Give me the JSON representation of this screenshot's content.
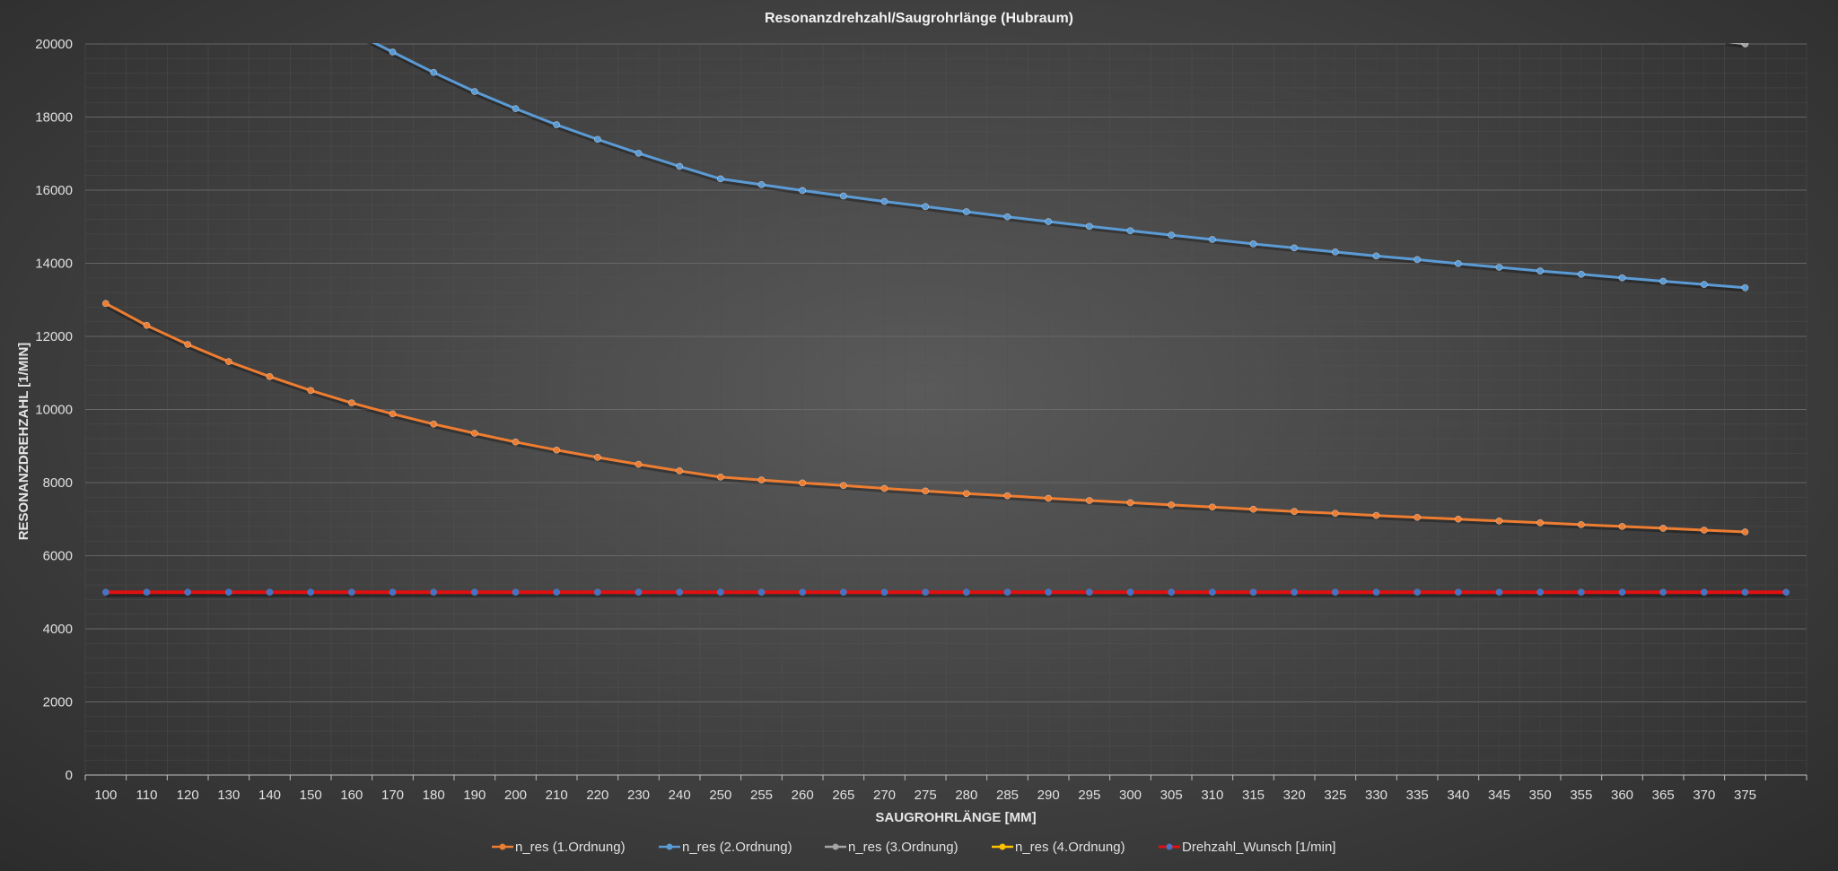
{
  "chart_data": {
    "type": "line",
    "title": "Resonanzdrehzahl/Saugrohrlänge (Hubraum)",
    "xlabel": "SAUGROHRLÄNGE [MM]",
    "ylabel": "RESONANZDREHZAHL [1/MIN]",
    "ylim": [
      0,
      20000
    ],
    "yticks": [
      0,
      2000,
      4000,
      6000,
      8000,
      10000,
      12000,
      14000,
      16000,
      18000,
      20000
    ],
    "grid": true,
    "legend_position": "bottom",
    "categories": [
      "100",
      "110",
      "120",
      "130",
      "140",
      "150",
      "160",
      "170",
      "180",
      "190",
      "200",
      "210",
      "220",
      "230",
      "240",
      "250",
      "255",
      "260",
      "265",
      "270",
      "275",
      "280",
      "285",
      "290",
      "295",
      "300",
      "305",
      "310",
      "315",
      "320",
      "325",
      "330",
      "335",
      "340",
      "345",
      "350",
      "355",
      "360",
      "365",
      "370",
      "375",
      ""
    ],
    "series": [
      {
        "name": "n_res (1.Ordnung)",
        "color": "#ed7d31",
        "values": [
          12900,
          12300,
          11780,
          11310,
          10900,
          10520,
          10180,
          9880,
          9600,
          9350,
          9110,
          8890,
          8690,
          8500,
          8320,
          8150,
          8070,
          7990,
          7920,
          7840,
          7770,
          7700,
          7640,
          7570,
          7510,
          7450,
          7390,
          7330,
          7270,
          7210,
          7160,
          7100,
          7050,
          7000,
          6950,
          6900,
          6850,
          6800,
          6750,
          6700,
          6650,
          null
        ]
      },
      {
        "name": "n_res (2.Ordnung)",
        "color": "#5b9bd5",
        "values": [
          null,
          null,
          null,
          null,
          null,
          null,
          null,
          19780,
          19220,
          18700,
          18230,
          17790,
          17390,
          17010,
          16650,
          16310,
          16150,
          15990,
          15840,
          15690,
          15550,
          15410,
          15270,
          15140,
          15010,
          14890,
          14770,
          14650,
          14530,
          14420,
          14310,
          14200,
          14100,
          13990,
          13890,
          13790,
          13700,
          13600,
          13510,
          13420,
          13330,
          null
        ]
      },
      {
        "name": "n_res (3.Ordnung)",
        "color": "#a5a5a5",
        "values": [
          null,
          null,
          null,
          null,
          null,
          null,
          null,
          null,
          null,
          null,
          null,
          null,
          null,
          null,
          null,
          null,
          null,
          null,
          null,
          null,
          null,
          null,
          null,
          null,
          null,
          null,
          null,
          null,
          null,
          null,
          null,
          null,
          null,
          null,
          null,
          null,
          null,
          null,
          null,
          null,
          20000,
          null
        ]
      },
      {
        "name": "n_res (4.Ordnung)",
        "color": "#ffc000",
        "values": [
          null,
          null,
          null,
          null,
          null,
          null,
          null,
          null,
          null,
          null,
          null,
          null,
          null,
          null,
          null,
          null,
          null,
          null,
          null,
          null,
          null,
          null,
          null,
          null,
          null,
          null,
          null,
          null,
          null,
          null,
          null,
          null,
          null,
          null,
          null,
          null,
          null,
          null,
          null,
          null,
          null,
          null
        ]
      },
      {
        "name": "Drehzahl_Wunsch [1/min]",
        "color": "#e01010",
        "marker_color": "#4472c4",
        "values": [
          5000,
          5000,
          5000,
          5000,
          5000,
          5000,
          5000,
          5000,
          5000,
          5000,
          5000,
          5000,
          5000,
          5000,
          5000,
          5000,
          5000,
          5000,
          5000,
          5000,
          5000,
          5000,
          5000,
          5000,
          5000,
          5000,
          5000,
          5000,
          5000,
          5000,
          5000,
          5000,
          5000,
          5000,
          5000,
          5000,
          5000,
          5000,
          5000,
          5000,
          5000,
          5000
        ]
      }
    ]
  }
}
